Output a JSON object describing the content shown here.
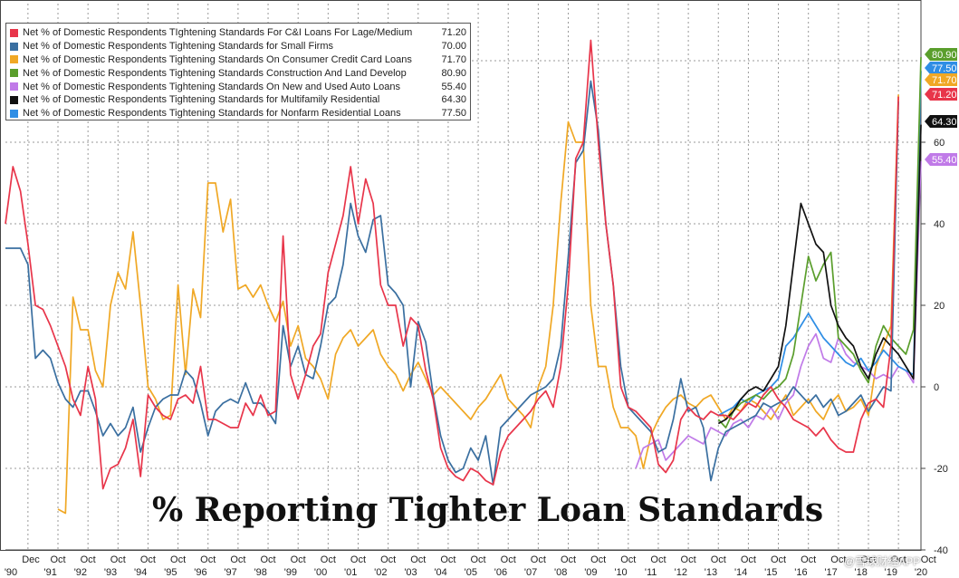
{
  "title": "% Reporting Tighter Loan Standards",
  "watermark": "@雪球财经APP",
  "chart_data": {
    "type": "line",
    "title": "% Reporting Tighter Loan Standards",
    "x_axis": {
      "tick_months": [
        "Dec",
        "Oct",
        "Oct",
        "Oct",
        "Oct",
        "Oct",
        "Oct",
        "Oct",
        "Oct",
        "Oct",
        "Oct",
        "Oct",
        "Oct",
        "Oct",
        "Oct",
        "Oct",
        "Oct",
        "Oct",
        "Oct",
        "Oct",
        "Oct",
        "Oct",
        "Oct",
        "Oct",
        "Oct",
        "Oct",
        "Oct",
        "Oct",
        "Oct",
        "Oct",
        "Oct",
        ""
      ],
      "tick_years": [
        "'90",
        "'91",
        "'92",
        "'93",
        "'94",
        "'95",
        "'96",
        "'97",
        "'98",
        "'99",
        "'00",
        "'01",
        "'02",
        "'03",
        "'04",
        "'05",
        "'06",
        "'07",
        "'08",
        "'09",
        "'10",
        "'11",
        "'12",
        "'13",
        "'14",
        "'15",
        "'16",
        "'17",
        "'18",
        "'19",
        "'20"
      ],
      "range": [
        1990.0,
        2020.5
      ]
    },
    "y_axis": {
      "ticks": [
        -40,
        -20,
        0,
        20,
        40,
        60
      ],
      "range": [
        -40,
        94
      ],
      "position": "right",
      "grid": true
    },
    "legend_position": "top-left",
    "series": [
      {
        "name": "Net % of Domestic Respondents TIghtening Standards For C&I Loans For Lage/Medium",
        "last": "71.20",
        "color": "#e8354a",
        "start": 1990.0,
        "step": 0.25,
        "values": [
          40,
          54,
          48,
          35,
          20,
          19,
          15,
          10,
          5,
          -3,
          -7,
          5,
          -3,
          -25,
          -20,
          -19,
          -15,
          -8,
          -22,
          -2,
          -5,
          -7,
          -8,
          -3,
          -2,
          -4,
          5,
          -8,
          -8,
          -9,
          -10,
          -10,
          -4,
          -7,
          -2,
          -7,
          -6,
          37,
          3,
          -3,
          3,
          10,
          13,
          28,
          35,
          42,
          54,
          40,
          51,
          45,
          25,
          20,
          20,
          10,
          17,
          15,
          4,
          -3,
          -15,
          -20,
          -22,
          -23,
          -20,
          -21,
          -23,
          -24,
          -16,
          -12,
          -10,
          -8,
          -6,
          -3,
          -1,
          -5,
          5,
          25,
          56,
          60,
          85,
          60,
          40,
          25,
          0,
          -5,
          -6,
          -8,
          -10,
          -19,
          -21,
          -18,
          -8,
          -5,
          -7,
          -8,
          -6,
          -7,
          -7,
          -8,
          -6,
          -4,
          -5,
          -2,
          0,
          -3,
          -5,
          -8,
          -9,
          -10,
          -12,
          -10,
          -13,
          -15,
          -16,
          -16,
          -8,
          -4,
          -3,
          -5,
          10,
          71.2
        ]
      },
      {
        "name": "Net % of Domestic Respondents Tightening Standards for Small Firms",
        "last": "70.00",
        "color": "#3a6fa0",
        "start": 1990.0,
        "step": 0.25,
        "values": [
          34,
          34,
          34,
          30,
          7,
          9,
          7,
          1,
          -3,
          -5,
          -1,
          -1,
          -6,
          -12,
          -9,
          -12,
          -10,
          -5,
          -16,
          -10,
          -5,
          -3,
          -2,
          -2,
          4,
          2,
          -4,
          -12,
          -6,
          -4,
          -3,
          -4,
          1,
          -4,
          -4,
          -6,
          -9,
          15,
          5,
          10,
          3,
          2,
          10,
          20,
          22,
          30,
          45,
          37,
          33,
          41,
          42,
          25,
          23,
          20,
          0,
          16,
          11,
          -2,
          -12,
          -18,
          -21,
          -20,
          -15,
          -18,
          -12,
          -24,
          -10,
          -8,
          -6,
          -4,
          -2,
          -1,
          0,
          2,
          10,
          32,
          55,
          58,
          75,
          63,
          40,
          25,
          5,
          -5,
          -7,
          -9,
          -11,
          -16,
          -15,
          -8,
          2,
          -6,
          -5,
          -10,
          -23,
          -15,
          -11,
          -10,
          -9,
          -8,
          -7,
          -4,
          -5,
          -4,
          -3,
          0,
          -2,
          -4,
          -2,
          -5,
          -3,
          -7,
          -6,
          -4,
          -2,
          -6,
          -3,
          0,
          -1,
          70.0
        ]
      },
      {
        "name": "Net % of Domestic Respondents Tightening Standards On Consumer Credit Card Loans",
        "last": "71.70",
        "color": "#f0a825",
        "start": 1990.0,
        "step": 0.25,
        "values": [
          null,
          null,
          null,
          null,
          null,
          null,
          null,
          -30,
          -31,
          22,
          14,
          14,
          4,
          0,
          20,
          28,
          24,
          38,
          20,
          0,
          -3,
          -8,
          -7,
          25,
          3,
          24,
          17,
          50,
          50,
          38,
          46,
          24,
          25,
          22,
          25,
          20,
          16,
          21,
          10,
          15,
          7,
          5,
          2,
          -3,
          8,
          12,
          14,
          10,
          12,
          14,
          8,
          5,
          3,
          -1,
          3,
          6,
          2,
          -2,
          0,
          -2,
          -4,
          -6,
          -8,
          -5,
          -3,
          0,
          3,
          -3,
          -5,
          -7,
          -10,
          0,
          5,
          20,
          45,
          65,
          60,
          60,
          20,
          5,
          5,
          -5,
          -10,
          -10,
          -12,
          -20,
          -12,
          -8,
          -5,
          -3,
          -2,
          -4,
          -5,
          -3,
          -2,
          -5,
          -8,
          -5,
          -6,
          -3,
          -4,
          -6,
          -8,
          -5,
          -2,
          -7,
          -5,
          -3,
          -6,
          -8,
          -4,
          -2,
          -6,
          -5,
          -3,
          -7,
          5,
          10,
          15,
          71.7
        ]
      },
      {
        "name": "Net % of Domestic Respondents Tightening Standards Construction And Land Develop",
        "last": "80.90",
        "color": "#5a9e2c",
        "start": 2013.75,
        "step": 0.25,
        "values": [
          -8,
          -10,
          -6,
          -4,
          -3,
          -2,
          -3,
          -1,
          0,
          2,
          8,
          20,
          32,
          26,
          30,
          33,
          12,
          10,
          8,
          4,
          1,
          10,
          15,
          12,
          10,
          8,
          14,
          80.9
        ]
      },
      {
        "name": "Net % of Domestic Respondents Tightening Standards On New and Used Auto Loans",
        "last": "55.40",
        "color": "#c07ae8",
        "start": 2011.0,
        "step": 0.25,
        "values": [
          -20,
          -15,
          -14,
          -13,
          -18,
          -16,
          -14,
          -12,
          -13,
          -14,
          -10,
          -11,
          -12,
          -9,
          -8,
          -10,
          -7,
          -8,
          -5,
          -8,
          -4,
          -2,
          5,
          10,
          13,
          7,
          6,
          12,
          8,
          6,
          5,
          4,
          2,
          3,
          2,
          5,
          4,
          1,
          55.4
        ]
      },
      {
        "name": "Net % of Domestic Respondents Tightening Standards for Multifamily Residential",
        "last": "64.30",
        "color": "#111111",
        "start": 2013.75,
        "step": 0.25,
        "values": [
          -9,
          -8,
          -6,
          -3,
          -1,
          0,
          -1,
          2,
          5,
          15,
          30,
          45,
          40,
          35,
          33,
          20,
          15,
          12,
          10,
          5,
          2,
          8,
          12,
          10,
          8,
          5,
          2,
          64.3
        ]
      },
      {
        "name": "Net % of Domestic Respondents Tightening Standards for Nonfarm Residential Loans",
        "last": "77.50",
        "color": "#2f8ee5",
        "start": 2013.75,
        "step": 0.25,
        "values": [
          -7,
          -6,
          -5,
          -3,
          -4,
          -2,
          -1,
          0,
          2,
          10,
          12,
          15,
          18,
          15,
          12,
          10,
          8,
          6,
          5,
          7,
          4,
          6,
          9,
          7,
          5,
          4,
          3,
          77.5
        ]
      }
    ],
    "label_order": [
      "80.90",
      "77.50",
      "71.70",
      "71.20",
      "64.30",
      "55.40"
    ]
  }
}
